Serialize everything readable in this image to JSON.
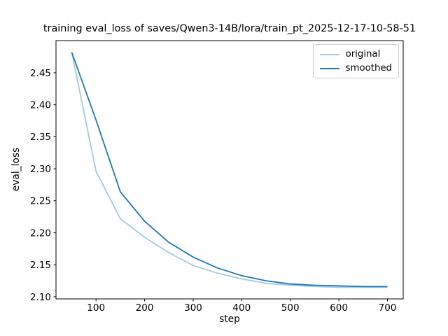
{
  "chart_data": {
    "type": "line",
    "title": "training eval_loss of saves/Qwen3-14B/lora/train_pt_2025-12-17-10-58-51",
    "xlabel": "step",
    "ylabel": "eval_loss",
    "x": [
      50,
      100,
      150,
      200,
      250,
      300,
      350,
      400,
      450,
      500,
      550,
      600,
      650,
      700
    ],
    "series": [
      {
        "name": "original",
        "color": "#a5c8e1",
        "values": [
          2.482,
          2.296,
          2.222,
          2.193,
          2.169,
          2.149,
          2.137,
          2.128,
          2.121,
          2.118,
          2.116,
          2.115,
          2.115,
          2.115
        ]
      },
      {
        "name": "smoothed",
        "color": "#1f77b4",
        "values": [
          2.482,
          2.376,
          2.264,
          2.218,
          2.185,
          2.162,
          2.145,
          2.133,
          2.125,
          2.12,
          2.118,
          2.117,
          2.116,
          2.116
        ]
      }
    ],
    "xlim": [
      17.5,
      732.5
    ],
    "ylim": [
      2.0967,
      2.5003
    ],
    "xticks": [
      100,
      200,
      300,
      400,
      500,
      600,
      700
    ],
    "yticks": [
      2.1,
      2.15,
      2.2,
      2.25,
      2.3,
      2.35,
      2.4,
      2.45
    ],
    "grid": false,
    "legend_position": "upper right",
    "background": "#ffffff",
    "spine_color": "#000000"
  }
}
